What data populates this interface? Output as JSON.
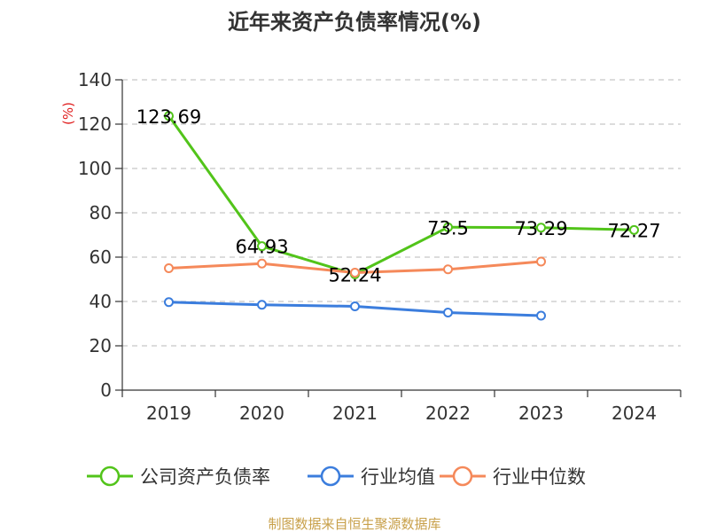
{
  "chart_data": {
    "type": "line",
    "title": "近年来资产负债率情况(%)",
    "ylabel": "(%)",
    "xlabel": "",
    "categories": [
      "2019",
      "2020",
      "2021",
      "2022",
      "2023",
      "2024"
    ],
    "ylim": [
      0,
      140
    ],
    "yticks": [
      0,
      20,
      40,
      60,
      80,
      100,
      120,
      140
    ],
    "grid": "horizontal-dashed",
    "legend_position": "bottom",
    "series": [
      {
        "name": "公司资产负债率",
        "color": "#52c41a",
        "values": [
          123.69,
          64.93,
          52.24,
          73.5,
          73.29,
          72.27
        ],
        "labels": [
          "123.69",
          "64.93",
          "52.24",
          "73.5",
          "73.29",
          "72.27"
        ]
      },
      {
        "name": "行业均值",
        "color": "#3b7ddd",
        "values": [
          39.7,
          38.5,
          37.8,
          35.0,
          33.6,
          null
        ]
      },
      {
        "name": "行业中位数",
        "color": "#f5895a",
        "values": [
          55.0,
          57.1,
          53.0,
          54.5,
          58.0,
          null
        ]
      }
    ]
  },
  "footer": {
    "source": "制图数据来自恒生聚源数据库"
  }
}
